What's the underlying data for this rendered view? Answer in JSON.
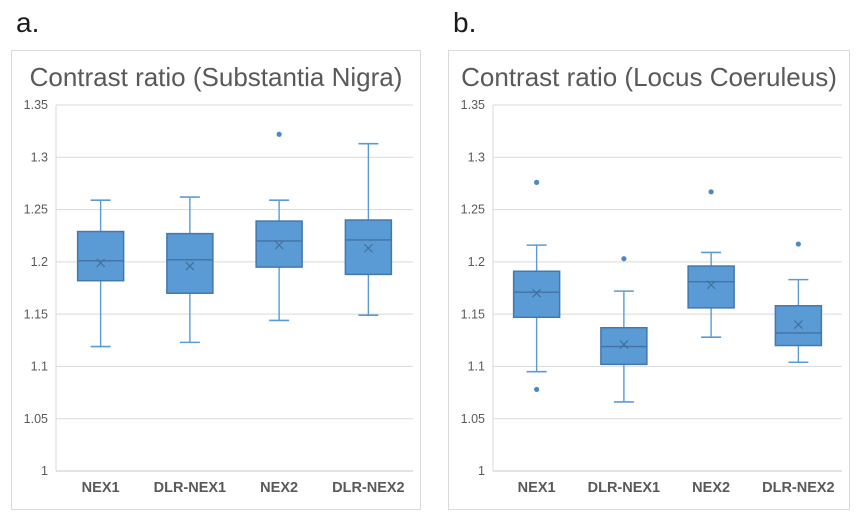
{
  "panels": [
    {
      "letter": "a."
    },
    {
      "letter": "b."
    }
  ],
  "chart_data": [
    {
      "type": "boxplot",
      "title": "Contrast ratio (Substantia Nigra)",
      "categories": [
        "NEX1",
        "DLR-NEX1",
        "NEX2",
        "DLR-NEX2"
      ],
      "ylim": [
        1,
        1.35
      ],
      "yticks": [
        1,
        1.05,
        1.1,
        1.15,
        1.2,
        1.25,
        1.3,
        1.35
      ],
      "ytick_labels": [
        "1",
        "1.05",
        "1.1",
        "1.15",
        "1.2",
        "1.25",
        "1.3",
        "1.35"
      ],
      "grid": true,
      "legend": "none",
      "series": [
        {
          "name": "NEX1",
          "whisker_low": 1.119,
          "q1": 1.182,
          "median": 1.201,
          "mean": 1.199,
          "q3": 1.229,
          "whisker_high": 1.259,
          "outliers": []
        },
        {
          "name": "DLR-NEX1",
          "whisker_low": 1.123,
          "q1": 1.17,
          "median": 1.202,
          "mean": 1.196,
          "q3": 1.227,
          "whisker_high": 1.262,
          "outliers": []
        },
        {
          "name": "NEX2",
          "whisker_low": 1.144,
          "q1": 1.195,
          "median": 1.22,
          "mean": 1.216,
          "q3": 1.239,
          "whisker_high": 1.259,
          "outliers": [
            1.322
          ]
        },
        {
          "name": "DLR-NEX2",
          "whisker_low": 1.149,
          "q1": 1.188,
          "median": 1.221,
          "mean": 1.213,
          "q3": 1.24,
          "whisker_high": 1.313,
          "outliers": []
        }
      ]
    },
    {
      "type": "boxplot",
      "title": "Contrast ratio (Locus Coeruleus)",
      "categories": [
        "NEX1",
        "DLR-NEX1",
        "NEX2",
        "DLR-NEX2"
      ],
      "ylim": [
        1,
        1.35
      ],
      "yticks": [
        1,
        1.05,
        1.1,
        1.15,
        1.2,
        1.25,
        1.3,
        1.35
      ],
      "ytick_labels": [
        "1",
        "1.05",
        "1.1",
        "1.15",
        "1.2",
        "1.25",
        "1.3",
        "1.35"
      ],
      "grid": true,
      "legend": "none",
      "series": [
        {
          "name": "NEX1",
          "whisker_low": 1.095,
          "q1": 1.147,
          "median": 1.171,
          "mean": 1.17,
          "q3": 1.191,
          "whisker_high": 1.216,
          "outliers": [
            1.276,
            1.078
          ]
        },
        {
          "name": "DLR-NEX1",
          "whisker_low": 1.066,
          "q1": 1.102,
          "median": 1.119,
          "mean": 1.121,
          "q3": 1.137,
          "whisker_high": 1.172,
          "outliers": [
            1.203
          ]
        },
        {
          "name": "NEX2",
          "whisker_low": 1.128,
          "q1": 1.156,
          "median": 1.181,
          "mean": 1.178,
          "q3": 1.196,
          "whisker_high": 1.209,
          "outliers": [
            1.267
          ]
        },
        {
          "name": "DLR-NEX2",
          "whisker_low": 1.104,
          "q1": 1.12,
          "median": 1.132,
          "mean": 1.14,
          "q3": 1.158,
          "whisker_high": 1.183,
          "outliers": [
            1.217
          ]
        }
      ]
    }
  ],
  "style": {
    "box_fill": "#5b9bd5",
    "box_border": "#4478ad",
    "whisker_color": "#5b9bd5",
    "median_color": "#4472a4",
    "mean_color": "#41719c",
    "outlier_color": "#4d87c7",
    "grid_color": "#d9d9d9",
    "axis_line_color": "#c9c9c9",
    "tick_text_color": "#595959",
    "category_text_color": "#595959",
    "title_color": "#595959"
  }
}
